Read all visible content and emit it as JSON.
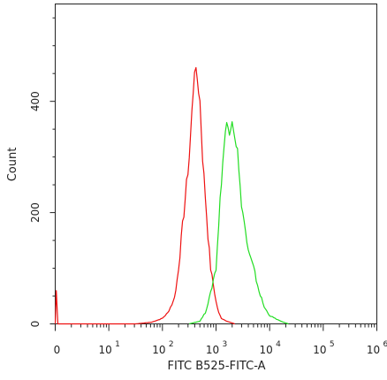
{
  "chart_data": {
    "type": "line",
    "xlabel": "FITC B525-FITC-A",
    "ylabel": "Count",
    "x_scale": "log (with 0 shown at left)",
    "y_ticks": [
      {
        "value": 0,
        "label": "0"
      },
      {
        "value": 200,
        "label": "200"
      },
      {
        "value": 400,
        "label": "400"
      }
    ],
    "x_ticks": [
      {
        "value": 0,
        "label": "0"
      },
      {
        "exp": 1,
        "label": "10",
        "sup": "1"
      },
      {
        "exp": 2,
        "label": "10",
        "sup": "2"
      },
      {
        "exp": 3,
        "label": "10",
        "sup": "3"
      },
      {
        "exp": 4,
        "label": "10",
        "sup": "4"
      },
      {
        "exp": 5,
        "label": "10",
        "sup": "5"
      },
      {
        "exp": 6,
        "label": "10",
        "sup": "6"
      }
    ],
    "ylim": [
      0,
      575
    ],
    "xlim_decades": [
      0,
      6
    ],
    "series": [
      {
        "color": "#ee1111",
        "points": [
          [
            0.0,
            0
          ],
          [
            0.02,
            60
          ],
          [
            0.05,
            0
          ],
          [
            1.5,
            0
          ],
          [
            1.8,
            3
          ],
          [
            2.0,
            10
          ],
          [
            2.1,
            20
          ],
          [
            2.2,
            40
          ],
          [
            2.25,
            60
          ],
          [
            2.3,
            100
          ],
          [
            2.35,
            150
          ],
          [
            2.4,
            200
          ],
          [
            2.45,
            250
          ],
          [
            2.5,
            300
          ],
          [
            2.55,
            380
          ],
          [
            2.6,
            460
          ],
          [
            2.65,
            440
          ],
          [
            2.7,
            400
          ],
          [
            2.75,
            300
          ],
          [
            2.8,
            230
          ],
          [
            2.85,
            160
          ],
          [
            2.9,
            100
          ],
          [
            2.95,
            70
          ],
          [
            3.0,
            40
          ],
          [
            3.05,
            20
          ],
          [
            3.1,
            10
          ],
          [
            3.2,
            5
          ],
          [
            3.35,
            0
          ]
        ]
      },
      {
        "color": "#22dd22",
        "points": [
          [
            2.5,
            0
          ],
          [
            2.7,
            5
          ],
          [
            2.8,
            20
          ],
          [
            2.9,
            55
          ],
          [
            2.95,
            80
          ],
          [
            3.0,
            100
          ],
          [
            3.05,
            180
          ],
          [
            3.1,
            260
          ],
          [
            3.15,
            320
          ],
          [
            3.2,
            360
          ],
          [
            3.25,
            350
          ],
          [
            3.3,
            370
          ],
          [
            3.35,
            340
          ],
          [
            3.4,
            310
          ],
          [
            3.45,
            240
          ],
          [
            3.5,
            200
          ],
          [
            3.6,
            130
          ],
          [
            3.7,
            100
          ],
          [
            3.8,
            60
          ],
          [
            3.9,
            30
          ],
          [
            4.0,
            15
          ],
          [
            4.1,
            10
          ],
          [
            4.2,
            5
          ],
          [
            4.35,
            0
          ]
        ]
      }
    ]
  }
}
